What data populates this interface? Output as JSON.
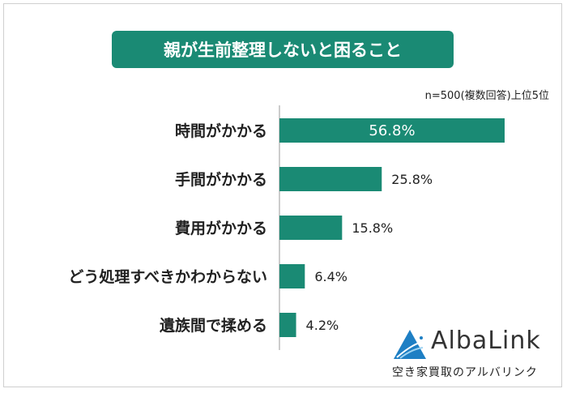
{
  "chart_data": {
    "type": "bar",
    "orientation": "horizontal",
    "title": "親が生前整理しないと困ること",
    "note": "n=500(複数回答)上位5位",
    "categories": [
      "時間がかかる",
      "手間がかかる",
      "費用がかかる",
      "どう処理すべきかわからない",
      "遺族間で揉める"
    ],
    "values": [
      56.8,
      25.8,
      15.8,
      6.4,
      4.2
    ],
    "labels": [
      "56.8%",
      "25.8%",
      "15.8%",
      "6.4%",
      "4.2%"
    ],
    "unit": "%",
    "xlim": [
      0,
      70
    ],
    "grid": false,
    "bar_color": "#1a8a74"
  },
  "brand": {
    "name": "AlbaLink",
    "tagline": "空き家買取のアルバリンク"
  }
}
